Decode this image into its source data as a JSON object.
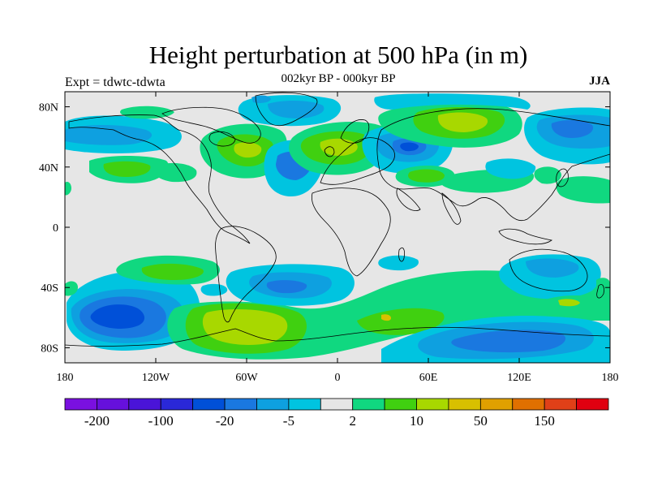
{
  "title": "Height perturbation at 500 hPa (in m)",
  "subtitle": "002kyr BP - 000kyr BP",
  "experiment_label": "Expt = tdwtc-tdwta",
  "season": "JJA",
  "map": {
    "projection": "cylindrical-equidistant",
    "lon_range": [
      -180,
      180
    ],
    "lat_range": [
      -90,
      90
    ],
    "lat_ticks": [
      {
        "value": 80,
        "label": "80N"
      },
      {
        "value": 40,
        "label": "40N"
      },
      {
        "value": 0,
        "label": "0"
      },
      {
        "value": -40,
        "label": "40S"
      },
      {
        "value": -80,
        "label": "80S"
      }
    ],
    "lon_ticks": [
      {
        "value": -180,
        "label": "180"
      },
      {
        "value": -120,
        "label": "120W"
      },
      {
        "value": -60,
        "label": "60W"
      },
      {
        "value": 0,
        "label": "0"
      },
      {
        "value": 60,
        "label": "60E"
      },
      {
        "value": 120,
        "label": "120E"
      },
      {
        "value": 180,
        "label": "180"
      }
    ],
    "background_color": "#e6e6e6"
  },
  "colorbar": {
    "colors": [
      "#7a10e0",
      "#6610dc",
      "#4a14d8",
      "#2a28d8",
      "#0050d8",
      "#1a78e0",
      "#0ea0e0",
      "#00c4e0",
      "#e6e6e6",
      "#10d880",
      "#40d010",
      "#a8d800",
      "#d8c000",
      "#e0a000",
      "#e07000",
      "#e04018",
      "#e00010"
    ],
    "labels": [
      {
        "after_bin": 1,
        "text": "-200"
      },
      {
        "after_bin": 3,
        "text": "-100"
      },
      {
        "after_bin": 5,
        "text": "-20"
      },
      {
        "after_bin": 7,
        "text": "-5"
      },
      {
        "after_bin": 9,
        "text": "2"
      },
      {
        "after_bin": 11,
        "text": "10"
      },
      {
        "after_bin": 13,
        "text": "50"
      },
      {
        "after_bin": 15,
        "text": "150"
      }
    ]
  },
  "regions": [
    {
      "name": "south-pacific-low",
      "lon": -135,
      "lat": -57,
      "level": -3,
      "rx": 50,
      "ry": 18
    },
    {
      "name": "south-atlantic-low",
      "lon": -40,
      "lat": -38,
      "level": -2,
      "rx": 28,
      "ry": 10
    },
    {
      "name": "antarctic-high",
      "lon": -55,
      "lat": -70,
      "level": 2,
      "rx": 45,
      "ry": 13
    },
    {
      "name": "europe-high",
      "lon": 5,
      "lat": 55,
      "level": 2,
      "rx": 22,
      "ry": 15
    },
    {
      "name": "siberia-high",
      "lon": 75,
      "lat": 70,
      "level": 2,
      "rx": 35,
      "ry": 12
    },
    {
      "name": "caspian-low",
      "lon": 48,
      "lat": 50,
      "level": -2,
      "rx": 15,
      "ry": 10
    },
    {
      "name": "north-atlantic-low",
      "lon": -30,
      "lat": 42,
      "level": -2,
      "rx": 12,
      "ry": 10
    },
    {
      "name": "east-asia-low",
      "lon": 135,
      "lat": 65,
      "level": -2,
      "rx": 22,
      "ry": 10
    },
    {
      "name": "australia-low",
      "lon": 135,
      "lat": -25,
      "level": -1,
      "rx": 18,
      "ry": 8
    },
    {
      "name": "south-indian-low",
      "lon": 100,
      "lat": -65,
      "level": -2,
      "rx": 50,
      "ry": 12
    }
  ]
}
